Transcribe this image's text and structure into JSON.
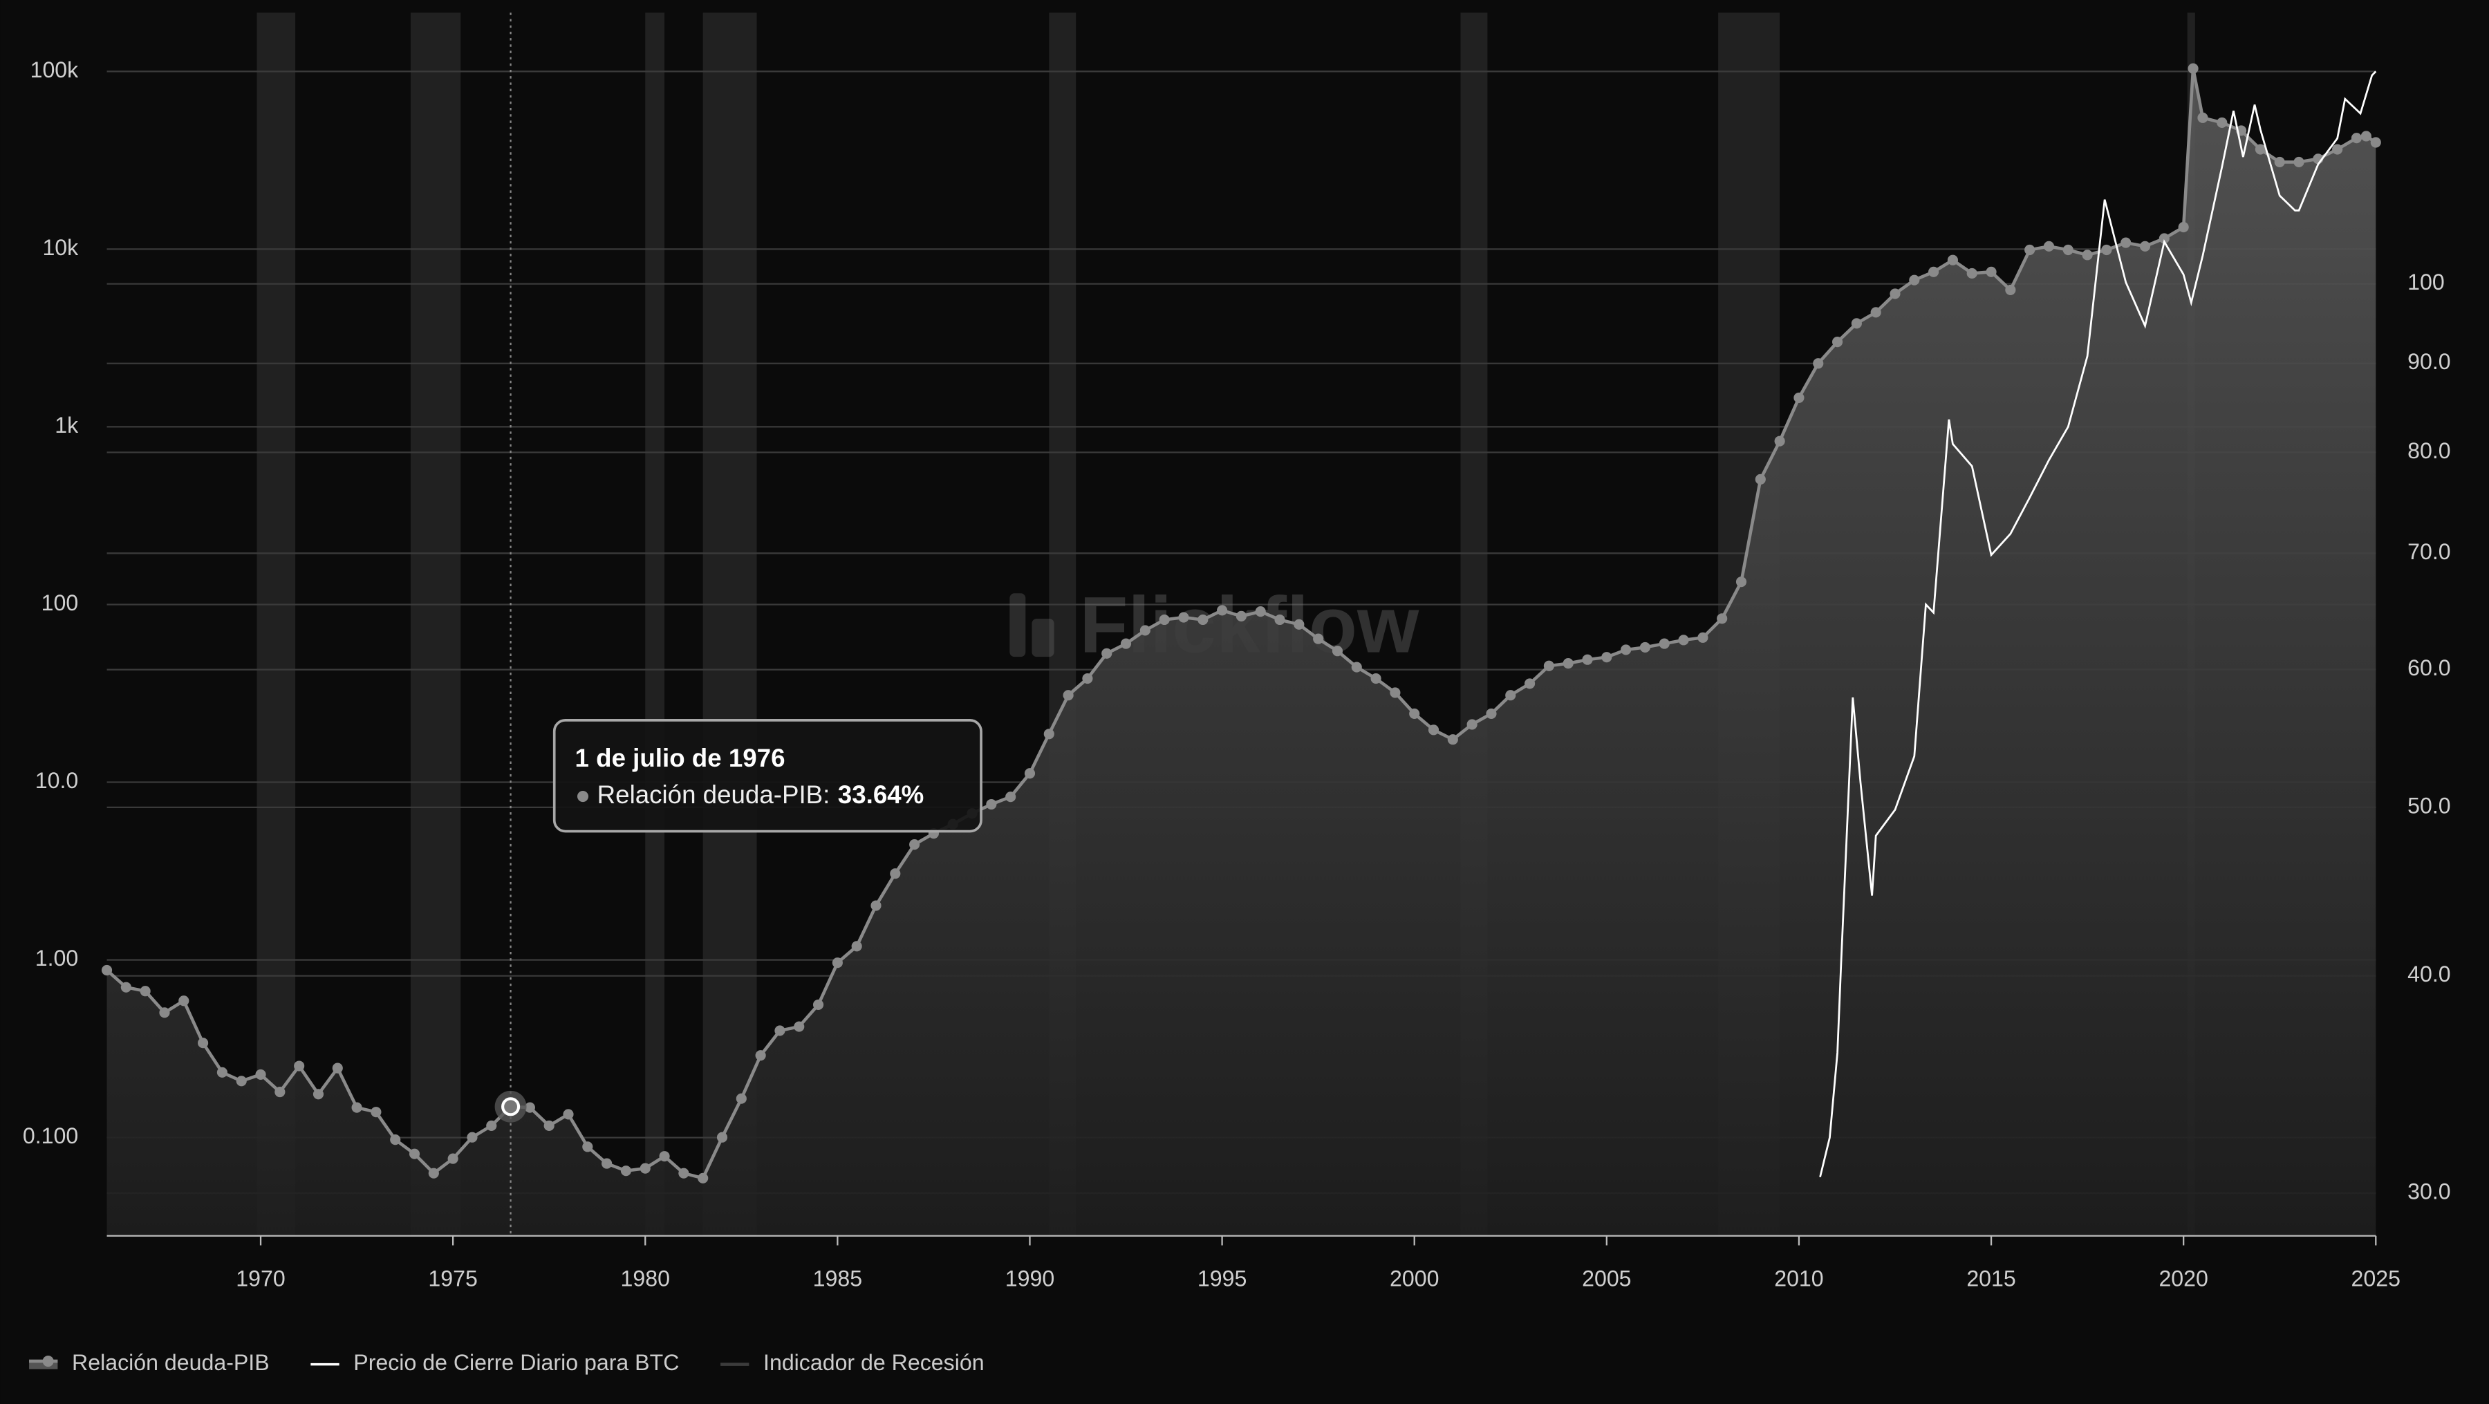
{
  "chart_data": {
    "type": "line",
    "log_scale": true,
    "y2_log_scale": true,
    "grid": true,
    "legend": "bottom-left",
    "watermark": "Flickflow",
    "xlim": [
      1966,
      2025
    ],
    "xticks": [
      1970,
      1975,
      1980,
      1985,
      1990,
      1995,
      2000,
      2005,
      2010,
      2015,
      2020,
      2025
    ],
    "ylim": [
      0.028,
      214000
    ],
    "yticks": [
      {
        "value": 0.1,
        "label": "0.100"
      },
      {
        "value": 1,
        "label": "1.00"
      },
      {
        "value": 10,
        "label": "10.0"
      },
      100,
      {
        "value": 1000,
        "label": "1k"
      },
      {
        "value": 10000,
        "label": "10k"
      },
      {
        "value": 100000,
        "label": "100k"
      }
    ],
    "y2lim": [
      28.35,
      143.2
    ],
    "y2ticks": [
      {
        "value": 30,
        "label": "30.0"
      },
      {
        "value": 40,
        "label": "40.0"
      },
      {
        "value": 50,
        "label": "50.0"
      },
      {
        "value": 60,
        "label": "60.0"
      },
      {
        "value": 70,
        "label": "70.0"
      },
      {
        "value": 80,
        "label": "80.0"
      },
      {
        "value": 90,
        "label": "90.0"
      },
      100
    ],
    "series": [
      {
        "name": "Relación deuda-PIB",
        "color": "#8a8a8a",
        "axis": "y2",
        "x": [
          1966,
          1966.5,
          1967,
          1967.5,
          1968,
          1968.5,
          1969,
          1969.5,
          1970,
          1970.5,
          1971,
          1971.5,
          1972,
          1972.5,
          1973,
          1973.5,
          1974,
          1974.5,
          1975,
          1975.5,
          1976,
          1976.5,
          1977,
          1977.5,
          1978,
          1978.5,
          1979,
          1979.5,
          1980,
          1980.5,
          1981,
          1981.5,
          1982,
          1982.5,
          1983,
          1983.5,
          1984,
          1984.5,
          1985,
          1985.5,
          1986,
          1986.5,
          1987,
          1987.5,
          1988,
          1988.5,
          1989,
          1989.5,
          1990,
          1990.5,
          1991,
          1991.5,
          1992,
          1992.5,
          1993,
          1993.5,
          1994,
          1994.5,
          1995,
          1995.5,
          1996,
          1996.5,
          1997,
          1997.5,
          1998,
          1998.5,
          1999,
          1999.5,
          2000,
          2000.5,
          2001,
          2001.5,
          2002,
          2002.5,
          2003,
          2003.5,
          2004,
          2004.5,
          2005,
          2005.5,
          2006,
          2006.5,
          2007,
          2007.5,
          2008,
          2008.5,
          2009,
          2009.5,
          2010,
          2010.5,
          2011,
          2011.5,
          2012,
          2012.5,
          2013,
          2013.5,
          2014,
          2014.5,
          2015,
          2015.5,
          2016,
          2016.5,
          2017,
          2017.5,
          2018,
          2018.5,
          2019,
          2019.5,
          2020,
          2020.25,
          2020.5,
          2021,
          2021.5,
          2022,
          2022.5,
          2023,
          2023.5,
          2024,
          2024.5,
          2024.75,
          2025
        ],
        "values": [
          40.3,
          39.4,
          39.2,
          38.1,
          38.7,
          36.6,
          35.2,
          34.8,
          35.1,
          34.3,
          35.5,
          34.2,
          35.4,
          33.6,
          33.4,
          32.2,
          31.6,
          30.8,
          31.4,
          32.3,
          32.8,
          33.64,
          33.6,
          32.8,
          33.3,
          31.9,
          31.2,
          30.9,
          31.0,
          31.5,
          30.8,
          30.6,
          32.3,
          34.0,
          36.0,
          37.2,
          37.4,
          38.5,
          40.7,
          41.6,
          43.9,
          45.8,
          47.6,
          48.3,
          48.9,
          49.6,
          50.2,
          50.7,
          52.3,
          55.1,
          58.0,
          59.3,
          61.3,
          62.1,
          63.2,
          64.1,
          64.3,
          64.1,
          64.9,
          64.4,
          64.8,
          64.1,
          63.7,
          62.5,
          61.5,
          60.2,
          59.3,
          58.2,
          56.6,
          55.4,
          54.7,
          55.8,
          56.6,
          58.0,
          58.9,
          60.3,
          60.5,
          60.8,
          61.0,
          61.6,
          61.8,
          62.1,
          62.4,
          62.6,
          64.2,
          67.4,
          77.2,
          81.2,
          86.0,
          90.0,
          92.6,
          94.9,
          96.3,
          98.7,
          100.5,
          101.6,
          103.2,
          101.4,
          101.6,
          99.2,
          104.6,
          105.1,
          104.6,
          103.9,
          104.6,
          105.6,
          105.1,
          106.2,
          107.8,
          133.0,
          124.6,
          123.8,
          122.5,
          119.5,
          117.5,
          117.5,
          118.0,
          119.5,
          121.3,
          121.6,
          120.6
        ]
      },
      {
        "name": "Precio de Cierre Diario para BTC",
        "color": "#ffffff",
        "axis": "y",
        "x": [
          2010.55,
          2010.8,
          2011.0,
          2011.1,
          2011.4,
          2011.6,
          2011.9,
          2012.0,
          2012.5,
          2013.0,
          2013.3,
          2013.5,
          2013.9,
          2014.0,
          2014.5,
          2015.0,
          2015.5,
          2016.0,
          2016.5,
          2017.0,
          2017.5,
          2017.95,
          2018.5,
          2019.0,
          2019.5,
          2020.0,
          2020.2,
          2020.5,
          2021.0,
          2021.3,
          2021.55,
          2021.85,
          2022.0,
          2022.5,
          2022.9,
          2023.0,
          2023.5,
          2024.0,
          2024.2,
          2024.6,
          2024.9,
          2025.0
        ],
        "values": [
          0.06,
          0.1,
          0.3,
          1,
          30,
          10,
          2.3,
          5,
          7,
          14,
          100,
          90,
          1100,
          800,
          600,
          190,
          250,
          400,
          650,
          1000,
          2500,
          19000,
          6500,
          3700,
          11000,
          7200,
          5000,
          9200,
          29000,
          60000,
          33000,
          65000,
          47000,
          20000,
          16500,
          16500,
          30000,
          42000,
          70000,
          58000,
          95000,
          100000
        ]
      },
      {
        "name": "Indicador de Recesión",
        "color": "#2a2a2a",
        "periods": [
          [
            1969.9,
            1970.9
          ],
          [
            1973.9,
            1975.2
          ],
          [
            1980.0,
            1980.5
          ],
          [
            1981.5,
            1982.9
          ],
          [
            1990.5,
            1991.2
          ],
          [
            2001.2,
            2001.9
          ],
          [
            2007.9,
            2009.5
          ],
          [
            2020.1,
            2020.3
          ]
        ]
      }
    ],
    "tooltip": {
      "x": 1976.5,
      "date": "1 de julio de 1976",
      "label": "Relación deuda-PIB:",
      "value": "33.64%"
    }
  }
}
